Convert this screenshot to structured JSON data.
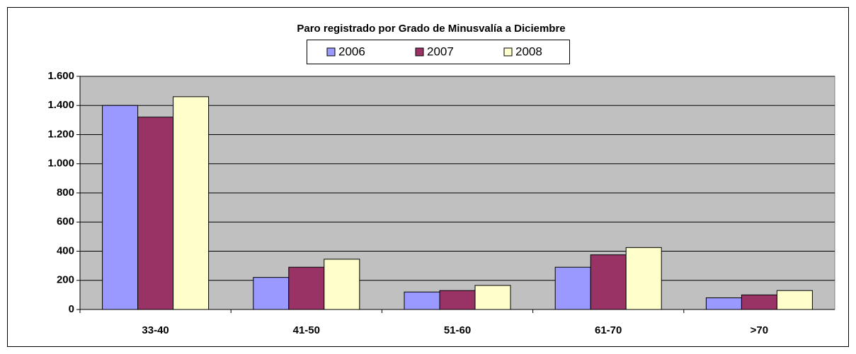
{
  "chart_data": {
    "type": "bar",
    "title": "Paro registrado por Grado de Minusvalía a Diciembre",
    "categories": [
      "33-40",
      "41-50",
      "51-60",
      "61-70",
      ">70"
    ],
    "series": [
      {
        "name": "2006",
        "color": "#9999ff",
        "values": [
          1400,
          220,
          120,
          290,
          80
        ]
      },
      {
        "name": "2007",
        "color": "#993366",
        "values": [
          1320,
          290,
          130,
          375,
          100
        ]
      },
      {
        "name": "2008",
        "color": "#ffffcc",
        "values": [
          1460,
          345,
          165,
          425,
          130
        ]
      }
    ],
    "ylim": [
      0,
      1600
    ],
    "yticks": [
      0,
      200,
      400,
      600,
      800,
      {
        "value": 1000,
        "label": "1.000"
      },
      {
        "value": 1200,
        "label": "1.200"
      },
      {
        "value": 1400,
        "label": "1.400"
      },
      {
        "value": 1600,
        "label": "1.600"
      }
    ],
    "grid": true,
    "plot_background": "#c0c0c0"
  }
}
